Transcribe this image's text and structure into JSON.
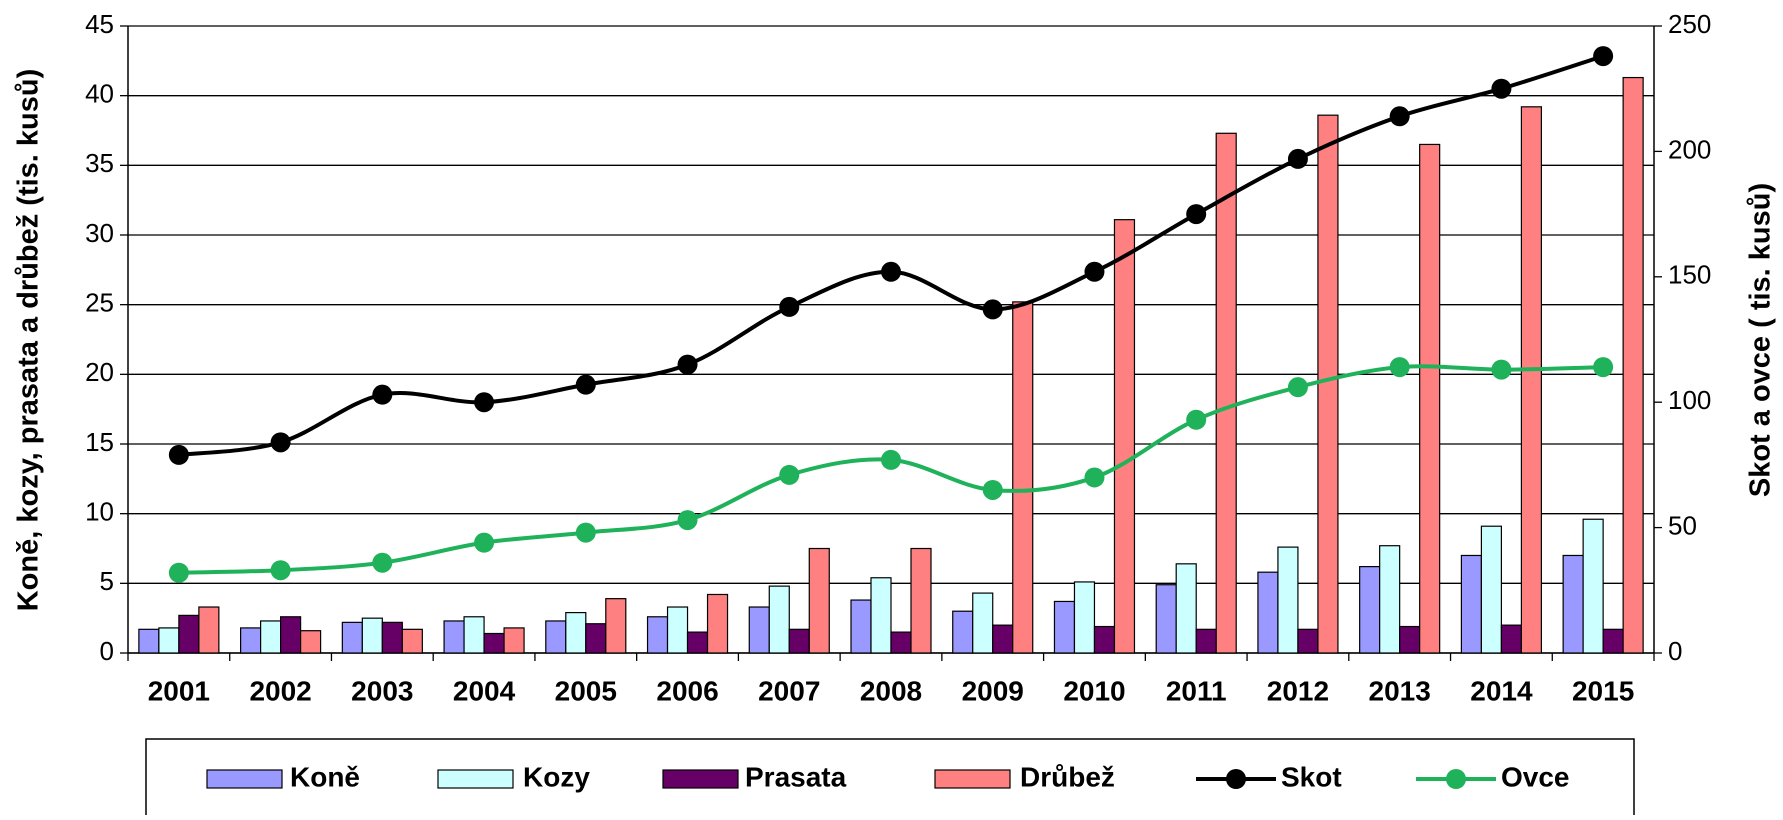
{
  "chart_data": {
    "type": "bar-line",
    "ylabel": "Koně, kozy, prasata a drůbež (tis. kusů)",
    "y2label": "Skot a ovce ( tis. kusů)",
    "categories": [
      "2001",
      "2002",
      "2003",
      "2004",
      "2005",
      "2006",
      "2007",
      "2008",
      "2009",
      "2010",
      "2011",
      "2012",
      "2013",
      "2014",
      "2015"
    ],
    "series": [
      {
        "name": "Koně",
        "type": "bar",
        "color": "#9999ff",
        "values": [
          1.7,
          1.8,
          2.2,
          2.3,
          2.3,
          2.6,
          3.3,
          3.8,
          3.0,
          3.7,
          4.9,
          5.8,
          6.2,
          7.0,
          7.0
        ]
      },
      {
        "name": "Kozy",
        "type": "bar",
        "color": "#ccffff",
        "values": [
          1.8,
          2.3,
          2.5,
          2.6,
          2.9,
          3.3,
          4.8,
          5.4,
          4.3,
          5.1,
          6.4,
          7.6,
          7.7,
          9.1,
          9.6
        ]
      },
      {
        "name": "Prasata",
        "type": "bar",
        "color": "#660066",
        "values": [
          2.7,
          2.6,
          2.2,
          1.4,
          2.1,
          1.5,
          1.7,
          1.5,
          2.0,
          1.9,
          1.7,
          1.7,
          1.9,
          2.0,
          1.7
        ]
      },
      {
        "name": "Drůbež",
        "type": "bar",
        "color": "#ff8080",
        "values": [
          3.3,
          1.6,
          1.7,
          1.8,
          3.9,
          4.2,
          7.5,
          7.5,
          25.2,
          31.1,
          37.3,
          38.6,
          36.5,
          39.2,
          41.3
        ]
      },
      {
        "name": "Skot",
        "type": "line",
        "axis": "y2",
        "color": "#000000",
        "values": [
          79,
          84,
          103,
          100,
          107,
          115,
          138,
          152,
          137,
          152,
          175,
          197,
          214,
          225,
          238
        ]
      },
      {
        "name": "Ovce",
        "type": "line",
        "axis": "y2",
        "color": "#1fb25a",
        "values": [
          32,
          33,
          36,
          44,
          48,
          53,
          71,
          77,
          65,
          70,
          93,
          106,
          114,
          113,
          114
        ]
      }
    ],
    "ylim": [
      0,
      45
    ],
    "yticks": [
      0,
      5,
      10,
      15,
      20,
      25,
      30,
      35,
      40,
      45
    ],
    "y2lim": [
      0,
      250
    ],
    "y2ticks": [
      0,
      50,
      100,
      150,
      200,
      250
    ],
    "grid": true,
    "legend": "bottom"
  }
}
